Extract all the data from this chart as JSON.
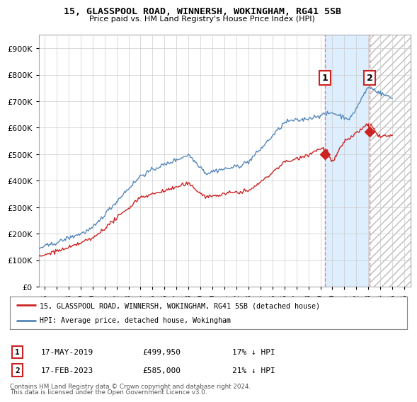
{
  "title": "15, GLASSPOOL ROAD, WINNERSH, WOKINGHAM, RG41 5SB",
  "subtitle": "Price paid vs. HM Land Registry's House Price Index (HPI)",
  "ylabel_ticks": [
    "£0",
    "£100K",
    "£200K",
    "£300K",
    "£400K",
    "£500K",
    "£600K",
    "£700K",
    "£800K",
    "£900K"
  ],
  "ytick_vals": [
    0,
    100000,
    200000,
    300000,
    400000,
    500000,
    600000,
    700000,
    800000,
    900000
  ],
  "ylim": [
    0,
    950000
  ],
  "xlim_start": 1995.5,
  "xlim_end": 2026.5,
  "hpi_color": "#5588bb",
  "price_color": "#cc2222",
  "vline_color": "#dd8888",
  "transaction1_x": 2019.37,
  "transaction1_y": 499950,
  "transaction2_x": 2023.12,
  "transaction2_y": 585000,
  "legend_price_label": "15, GLASSPOOL ROAD, WINNERSH, WOKINGHAM, RG41 5SB (detached house)",
  "legend_hpi_label": "HPI: Average price, detached house, Wokingham",
  "transaction1_date": "17-MAY-2019",
  "transaction1_price": "£499,950",
  "transaction1_hpi": "17% ↓ HPI",
  "transaction2_date": "17-FEB-2023",
  "transaction2_price": "£585,000",
  "transaction2_hpi": "21% ↓ HPI",
  "footer1": "Contains HM Land Registry data © Crown copyright and database right 2024.",
  "footer2": "This data is licensed under the Open Government Licence v3.0.",
  "background_color": "#ffffff",
  "grid_color": "#cccccc",
  "shade_color": "#ddeeff",
  "hatch_color": "#bbbbbb"
}
